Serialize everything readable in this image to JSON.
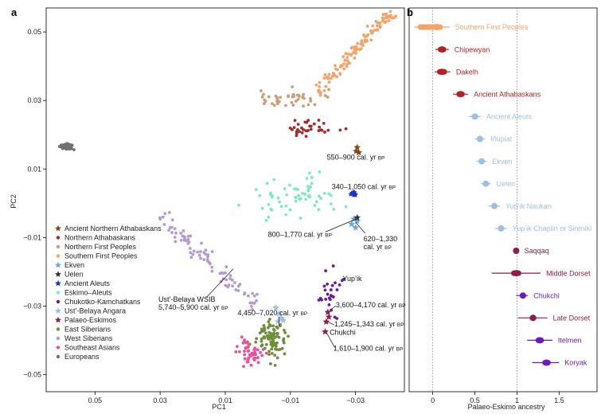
{
  "chart_data": [
    {
      "panel_label": "a",
      "type": "scatter",
      "xlabel": "PC1",
      "ylabel": "PC2",
      "x_reversed": true,
      "xlim": [
        0.065,
        -0.045
      ],
      "ylim": [
        -0.055,
        0.057
      ],
      "xticks": [
        0.05,
        0.03,
        0.01,
        -0.01,
        -0.03
      ],
      "xtick_labels": [
        "0.05",
        "0.03",
        "0.01",
        "−0.01",
        "−0.03"
      ],
      "yticks": [
        0.05,
        0.03,
        0.01,
        -0.01,
        -0.03,
        -0.05
      ],
      "ytick_labels": [
        "0.05",
        "0.03",
        "0.01",
        "−0.01",
        "−0.03",
        "−0.05"
      ],
      "legend_position": "bottom-left",
      "series": [
        {
          "name": "Ancient Northern Athabaskans",
          "marker": "star",
          "color": "#8b4513",
          "points": [
            [
              -0.0305,
              0.0163
            ],
            [
              -0.031,
              0.0148
            ],
            [
              -0.0302,
              0.0152
            ]
          ]
        },
        {
          "name": "Northern Athabaskans",
          "marker": "circle",
          "color": "#a52a2a",
          "cluster": {
            "cx": -0.0165,
            "cy": 0.0222,
            "sx": 0.009,
            "sy": 0.0025,
            "n": 34
          }
        },
        {
          "name": "Northern First Peoples",
          "marker": "circle",
          "color": "#c8a07a",
          "cluster": {
            "cx": -0.0105,
            "cy": 0.0305,
            "sx": 0.0085,
            "sy": 0.0025,
            "n": 44
          }
        },
        {
          "name": "Southern First Peoples",
          "marker": "circle",
          "color": "#f4a46a",
          "trend": {
            "x0": -0.0185,
            "y0": 0.0325,
            "x1": -0.0405,
            "y1": 0.0555,
            "spread": 0.0018,
            "n": 110
          }
        },
        {
          "name": "Ekven",
          "marker": "star",
          "color": "#66a8e0",
          "points": [
            [
              -0.0295,
              -0.0046
            ],
            [
              -0.0305,
              -0.0052
            ],
            [
              -0.0288,
              -0.0061
            ],
            [
              -0.03,
              -0.0071
            ]
          ]
        },
        {
          "name": "Uelen",
          "marker": "star",
          "color": "#333333",
          "points": [
            [
              -0.0305,
              -0.0042
            ]
          ]
        },
        {
          "name": "Ancient Aleuts",
          "marker": "star",
          "color": "#2030d0",
          "cluster": {
            "cx": -0.0293,
            "cy": 0.0025,
            "sx": 0.0008,
            "sy": 0.0006,
            "n": 12
          }
        },
        {
          "name": "Eskimo–Aleuts",
          "marker": "circle",
          "color": "#7fe8c4",
          "cluster": {
            "cx": -0.012,
            "cy": 0.0025,
            "sx": 0.012,
            "sy": 0.0055,
            "n": 60
          }
        },
        {
          "name": "Chukotko-Kamchatkans",
          "marker": "circle",
          "color": "#6a1b9a",
          "cluster": {
            "cx": -0.0225,
            "cy": -0.026,
            "sx": 0.0035,
            "sy": 0.0055,
            "n": 26
          }
        },
        {
          "name": "Ust’-Belaya Angara",
          "marker": "star",
          "color": "#9fbfe0",
          "points": [
            [
              -0.0055,
              -0.0305
            ],
            [
              -0.0065,
              -0.0322
            ],
            [
              -0.0072,
              -0.0335
            ],
            [
              -0.0062,
              -0.0345
            ],
            [
              -0.0078,
              -0.0342
            ]
          ]
        },
        {
          "name": "Palaeo-Eskimos",
          "marker": "star",
          "color": "#8b1e4a",
          "points": [
            [
              -0.0215,
              -0.0318
            ],
            [
              -0.0218,
              -0.0332
            ],
            [
              -0.021,
              -0.0346
            ],
            [
              -0.0207,
              -0.0375
            ]
          ]
        },
        {
          "name": "East Siberians",
          "marker": "circle",
          "color": "#6e8f3a",
          "cluster": {
            "cx": -0.004,
            "cy": -0.0395,
            "sx": 0.0045,
            "sy": 0.0055,
            "n": 90
          }
        },
        {
          "name": "West Siberians",
          "marker": "circle",
          "color": "#b49ad4",
          "trend": {
            "x0": 0.03,
            "y0": -0.004,
            "x1": 0.0,
            "y1": -0.03,
            "spread": 0.0022,
            "n": 85
          }
        },
        {
          "name": "Southeast Asians",
          "marker": "circle",
          "color": "#ee4f9a",
          "cluster": {
            "cx": 0.0025,
            "cy": -0.0435,
            "sx": 0.0035,
            "sy": 0.0032,
            "n": 46
          }
        },
        {
          "name": "Europeans",
          "marker": "circle",
          "color": "#707070",
          "cluster": {
            "cx": 0.0585,
            "cy": 0.0165,
            "sx": 0.0018,
            "sy": 0.0008,
            "n": 70
          }
        }
      ],
      "annotations": [
        {
          "text": "550–900 cal. yr",
          "suffix": "BP",
          "x": -0.0305,
          "y": 0.0155
        },
        {
          "text": "340–1,050 cal. yr",
          "suffix": "BP",
          "x": -0.0293,
          "y": 0.0027
        },
        {
          "text": "800–1,770 cal. yr",
          "suffix": "BP",
          "x": -0.0305,
          "y": -0.0042
        },
        {
          "text": "620–1,330",
          "suffix": "",
          "x": -0.03,
          "y": -0.0055
        },
        {
          "text": "cal. yr",
          "suffix": "BP",
          "x": -0.03,
          "y": -0.0055
        },
        {
          "text": "Yup’ik",
          "suffix": "",
          "x": -0.028,
          "y": -0.0115
        },
        {
          "text": "Chukchi",
          "suffix": "",
          "x": -0.025,
          "y": -0.0245
        },
        {
          "text": "Ust’-Belaya WSIB",
          "suffix": "",
          "x": 0.0105,
          "y": -0.0178
        },
        {
          "text": "5,740–5,900 cal. yr",
          "suffix": "BP",
          "x": 0.0105,
          "y": -0.0178
        },
        {
          "text": "4,450–7,020 cal. yr",
          "suffix": "BP",
          "x": -0.0065,
          "y": -0.0345
        },
        {
          "text": "3,600–4,170 cal. yr",
          "suffix": "BP",
          "x": -0.0215,
          "y": -0.0318
        },
        {
          "text": "1,245–1,343 cal. yr",
          "suffix": "BP",
          "x": -0.021,
          "y": -0.0346
        },
        {
          "text": "1,610–1,900 cal. yr",
          "suffix": "BP",
          "x": -0.0207,
          "y": -0.0375
        }
      ]
    },
    {
      "panel_label": "b",
      "type": "forest",
      "xlabel": "Palaeo-Eskimo ancestry",
      "xlim": [
        -0.28,
        1.95
      ],
      "xticks": [
        0,
        0.5,
        1,
        1.5
      ],
      "xtick_labels": [
        "0",
        "0.5",
        "1",
        "1.5"
      ],
      "reference_lines": [
        0,
        1
      ],
      "rows": [
        {
          "label": "Southern First Peoples",
          "value": 0.05,
          "ci": [
            -0.22,
            0.2
          ],
          "box": [
            -0.18,
            0.12
          ],
          "color": "#f4a46a"
        },
        {
          "label": "Chipewyan",
          "value": 0.11,
          "ci": [
            0.03,
            0.19
          ],
          "box": [
            0.06,
            0.16
          ],
          "color": "#b22222"
        },
        {
          "label": "Dakelh",
          "value": 0.11,
          "ci": [
            0.02,
            0.21
          ],
          "box": [
            0.05,
            0.17
          ],
          "color": "#b22222"
        },
        {
          "label": "Ancient Athabaskans",
          "value": 0.33,
          "ci": [
            0.24,
            0.42
          ],
          "box": [
            0.28,
            0.38
          ],
          "color": "#b22222"
        },
        {
          "label": "Ancient Aleuts",
          "value": 0.5,
          "ci": [
            0.43,
            0.57
          ],
          "box": [
            0.46,
            0.54
          ],
          "color": "#9fbfe0"
        },
        {
          "label": "Iñupiat",
          "value": 0.56,
          "ci": [
            0.5,
            0.62
          ],
          "box": [
            0.53,
            0.59
          ],
          "color": "#9fbfe0"
        },
        {
          "label": "Ekven",
          "value": 0.58,
          "ci": [
            0.52,
            0.64
          ],
          "box": [
            0.55,
            0.61
          ],
          "color": "#9fbfe0"
        },
        {
          "label": "Uelen",
          "value": 0.63,
          "ci": [
            0.57,
            0.69
          ],
          "box": [
            0.6,
            0.66
          ],
          "color": "#9fbfe0"
        },
        {
          "label": "Yup’ik Naukan",
          "value": 0.73,
          "ci": [
            0.66,
            0.8
          ],
          "box": [
            0.7,
            0.76
          ],
          "color": "#9fbfe0"
        },
        {
          "label": "Yup’ik Chaplin or Sireniki",
          "value": 0.81,
          "ci": [
            0.74,
            0.88
          ],
          "box": [
            0.78,
            0.84
          ],
          "color": "#9fbfe0"
        },
        {
          "label": "Saqqaq",
          "value": 0.99,
          "ci": [
            0.96,
            1.02
          ],
          "box": [
            0.97,
            1.01
          ],
          "color": "#8b1e4a"
        },
        {
          "label": "Middle Dorset",
          "value": 0.99,
          "ci": [
            0.7,
            1.28
          ],
          "box": [
            0.93,
            1.05
          ],
          "color": "#8b1e4a"
        },
        {
          "label": "Chukchi",
          "value": 1.07,
          "ci": [
            0.99,
            1.13
          ],
          "box": [
            1.04,
            1.1
          ],
          "color": "#6a1bc0"
        },
        {
          "label": "Late Dorset",
          "value": 1.19,
          "ci": [
            1.01,
            1.36
          ],
          "box": [
            1.15,
            1.23
          ],
          "color": "#8b1e4a"
        },
        {
          "label": "Itelmen",
          "value": 1.27,
          "ci": [
            1.12,
            1.42
          ],
          "box": [
            1.22,
            1.32
          ],
          "color": "#6a1bc0"
        },
        {
          "label": "Koryak",
          "value": 1.35,
          "ci": [
            1.18,
            1.5
          ],
          "box": [
            1.3,
            1.4
          ],
          "color": "#6a1bc0"
        }
      ]
    }
  ]
}
